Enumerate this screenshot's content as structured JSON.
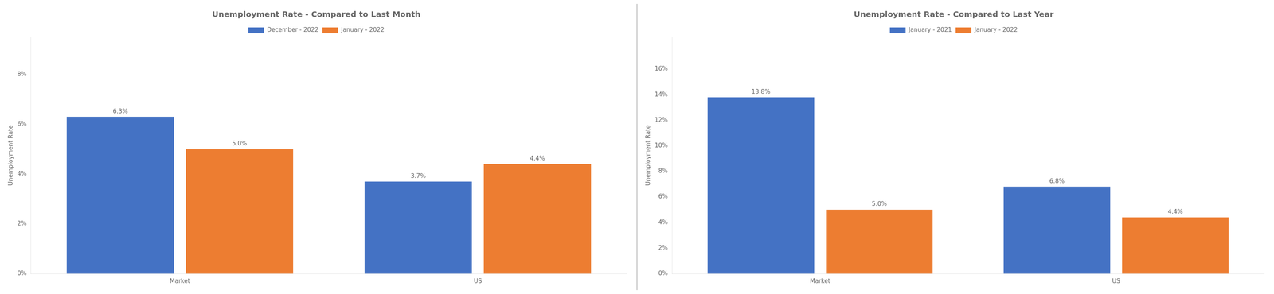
{
  "chart_data": [
    {
      "type": "bar",
      "title": "Unemployment Rate - Compared to Last Month",
      "categories": [
        "Market",
        "US"
      ],
      "series": [
        {
          "name": "December - 2022",
          "color": "#4472C4",
          "values": [
            6.3,
            3.7
          ],
          "value_labels": [
            "6.3%",
            "3.7%"
          ]
        },
        {
          "name": "January - 2022",
          "color": "#ED7D31",
          "values": [
            5.0,
            4.4
          ],
          "value_labels": [
            "5.0%",
            "4.4%"
          ]
        }
      ],
      "ylabel": "Unemployment Rate",
      "ylim": [
        0,
        9.5
      ],
      "yticks": [
        {
          "value": 0,
          "label": "0%"
        },
        {
          "value": 2,
          "label": "2%"
        },
        {
          "value": 4,
          "label": "4%"
        },
        {
          "value": 6,
          "label": "6%"
        },
        {
          "value": 8,
          "label": "8%"
        }
      ],
      "grid": false,
      "legend": "top",
      "data_labels": true
    },
    {
      "type": "bar",
      "title": "Unemployment Rate - Compared to Last Year",
      "categories": [
        "Market",
        "US"
      ],
      "series": [
        {
          "name": "January - 2021",
          "color": "#4472C4",
          "values": [
            13.8,
            6.8
          ],
          "value_labels": [
            "13.8%",
            "6.8%"
          ]
        },
        {
          "name": "January - 2022",
          "color": "#ED7D31",
          "values": [
            5.0,
            4.4
          ],
          "value_labels": [
            "5.0%",
            "4.4%"
          ]
        }
      ],
      "ylabel": "Unemployment Rate",
      "ylim": [
        0,
        18.5
      ],
      "yticks": [
        {
          "value": 0,
          "label": "0%"
        },
        {
          "value": 2,
          "label": "2%"
        },
        {
          "value": 4,
          "label": "4%"
        },
        {
          "value": 6,
          "label": "6%"
        },
        {
          "value": 8,
          "label": "8%"
        },
        {
          "value": 10,
          "label": "10%"
        },
        {
          "value": 12,
          "label": "12%"
        },
        {
          "value": 14,
          "label": "14%"
        },
        {
          "value": 16,
          "label": "16%"
        }
      ],
      "grid": false,
      "legend": "top",
      "data_labels": true
    }
  ]
}
